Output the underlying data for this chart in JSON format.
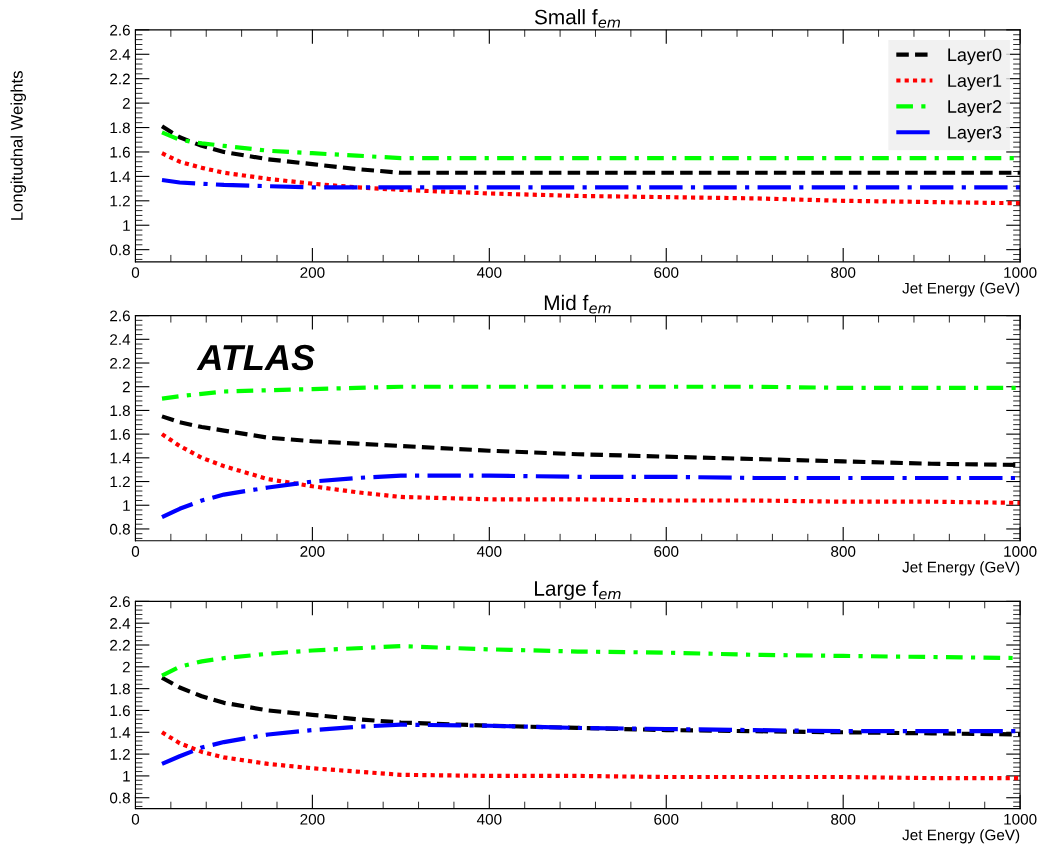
{
  "chart_data": [
    {
      "type": "line",
      "title": "Small f$_{em}$",
      "xlabel": "Jet Energy (GeV)",
      "ylabel": "Longitudnal Weights",
      "xlim": [
        0,
        1000
      ],
      "ylim": [
        0.7,
        2.6
      ],
      "xticks": [
        0,
        200,
        400,
        600,
        800,
        1000
      ],
      "yticks": [
        0.8,
        1,
        1.2,
        1.4,
        1.6,
        1.8,
        2,
        2.2,
        2.4,
        2.6
      ],
      "legend": "top right",
      "x": [
        30,
        50,
        75,
        100,
        150,
        200,
        250,
        300,
        400,
        500,
        600,
        700,
        800,
        900,
        1000
      ],
      "series": [
        {
          "name": "Layer0",
          "color": "#000000",
          "line_style": "dashed",
          "values": [
            1.81,
            1.72,
            1.65,
            1.6,
            1.54,
            1.5,
            1.46,
            1.43,
            1.43,
            1.43,
            1.43,
            1.43,
            1.43,
            1.43,
            1.43
          ]
        },
        {
          "name": "Layer1",
          "color": "#ff0000",
          "line_style": "dotted",
          "values": [
            1.59,
            1.52,
            1.47,
            1.43,
            1.38,
            1.34,
            1.31,
            1.29,
            1.26,
            1.24,
            1.23,
            1.22,
            1.2,
            1.19,
            1.18
          ]
        },
        {
          "name": "Layer2",
          "color": "#00ff00",
          "line_style": "dashdot",
          "values": [
            1.76,
            1.7,
            1.67,
            1.65,
            1.61,
            1.59,
            1.57,
            1.55,
            1.55,
            1.55,
            1.55,
            1.55,
            1.55,
            1.55,
            1.55
          ]
        },
        {
          "name": "Layer3",
          "color": "#0000ff",
          "line_style": "longdashdot",
          "values": [
            1.37,
            1.35,
            1.34,
            1.33,
            1.32,
            1.31,
            1.31,
            1.31,
            1.31,
            1.31,
            1.31,
            1.31,
            1.31,
            1.31,
            1.31
          ]
        }
      ]
    },
    {
      "type": "line",
      "title": "Mid f$_{em}$",
      "xlabel": "Jet Energy (GeV)",
      "xlim": [
        0,
        1000
      ],
      "ylim": [
        0.7,
        2.6
      ],
      "xticks": [
        0,
        200,
        400,
        600,
        800,
        1000
      ],
      "yticks": [
        0.8,
        1,
        1.2,
        1.4,
        1.6,
        1.8,
        2,
        2.2,
        2.4,
        2.6
      ],
      "annotations": [
        "ATLAS"
      ],
      "x": [
        30,
        50,
        75,
        100,
        150,
        200,
        250,
        300,
        400,
        500,
        600,
        700,
        800,
        900,
        1000
      ],
      "series": [
        {
          "color": "#000000",
          "line_style": "dashed",
          "values": [
            1.75,
            1.7,
            1.66,
            1.63,
            1.57,
            1.54,
            1.52,
            1.5,
            1.46,
            1.43,
            1.41,
            1.39,
            1.37,
            1.35,
            1.34
          ]
        },
        {
          "color": "#ff0000",
          "line_style": "dotted",
          "values": [
            1.6,
            1.5,
            1.4,
            1.33,
            1.22,
            1.16,
            1.11,
            1.07,
            1.05,
            1.05,
            1.04,
            1.04,
            1.03,
            1.03,
            1.02
          ]
        },
        {
          "color": "#00ff00",
          "line_style": "dashdot",
          "values": [
            1.9,
            1.92,
            1.94,
            1.96,
            1.97,
            1.98,
            1.99,
            2.0,
            2.0,
            2.0,
            2.0,
            2.0,
            1.99,
            1.99,
            1.99
          ]
        },
        {
          "color": "#0000ff",
          "line_style": "longdashdot",
          "values": [
            0.9,
            0.97,
            1.04,
            1.09,
            1.15,
            1.2,
            1.23,
            1.25,
            1.25,
            1.24,
            1.24,
            1.23,
            1.23,
            1.23,
            1.23
          ]
        }
      ]
    },
    {
      "type": "line",
      "title": "Large f$_{em}$",
      "xlabel": "Jet Energy (GeV)",
      "xlim": [
        0,
        1000
      ],
      "ylim": [
        0.7,
        2.6
      ],
      "xticks": [
        0,
        200,
        400,
        600,
        800,
        1000
      ],
      "yticks": [
        0.8,
        1,
        1.2,
        1.4,
        1.6,
        1.8,
        2,
        2.2,
        2.4,
        2.6
      ],
      "x": [
        30,
        50,
        75,
        100,
        150,
        200,
        250,
        300,
        400,
        500,
        600,
        700,
        800,
        900,
        1000
      ],
      "series": [
        {
          "color": "#000000",
          "line_style": "dashed",
          "values": [
            1.9,
            1.81,
            1.73,
            1.67,
            1.6,
            1.56,
            1.52,
            1.49,
            1.46,
            1.44,
            1.42,
            1.41,
            1.4,
            1.39,
            1.38
          ]
        },
        {
          "color": "#ff0000",
          "line_style": "dotted",
          "values": [
            1.4,
            1.3,
            1.22,
            1.17,
            1.11,
            1.07,
            1.04,
            1.01,
            1.0,
            1.0,
            0.99,
            0.99,
            0.99,
            0.98,
            0.98
          ]
        },
        {
          "color": "#00ff00",
          "line_style": "dashdot",
          "values": [
            1.92,
            2.0,
            2.05,
            2.08,
            2.12,
            2.15,
            2.17,
            2.19,
            2.16,
            2.14,
            2.13,
            2.11,
            2.1,
            2.09,
            2.08
          ]
        },
        {
          "color": "#0000ff",
          "line_style": "longdashdot",
          "values": [
            1.11,
            1.18,
            1.26,
            1.31,
            1.38,
            1.42,
            1.45,
            1.47,
            1.46,
            1.44,
            1.43,
            1.42,
            1.41,
            1.41,
            1.41
          ]
        }
      ]
    }
  ]
}
